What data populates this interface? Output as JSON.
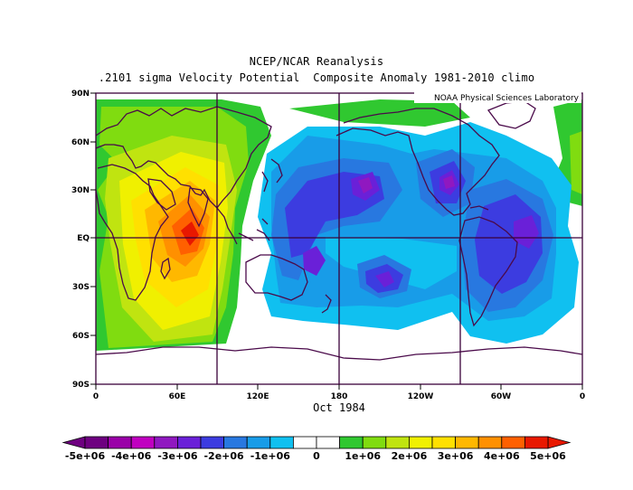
{
  "figure": {
    "title_line1": "NCEP/NCAR Reanalysis",
    "title_line2": ".2101 sigma Velocity Potential  Composite Anomaly 1981-2010 climo",
    "credit": "NOAA Physical Sciences Laboratory",
    "time_label": "Oct 1984"
  },
  "axes": {
    "lat_labels": [
      "90N",
      "60N",
      "30N",
      "EQ",
      "30S",
      "60S",
      "90S"
    ],
    "lon_labels": [
      "0",
      "60E",
      "120E",
      "180",
      "120W",
      "60W",
      "0"
    ]
  },
  "colorbar": {
    "labels": [
      "-5e+06",
      "-4e+06",
      "-3e+06",
      "-2e+06",
      "-1e+06",
      "0",
      "1e+06",
      "2e+06",
      "3e+06",
      "4e+06",
      "5e+06"
    ],
    "colors": [
      "#6e0080",
      "#9a00a8",
      "#c000c0",
      "#9018c0",
      "#6a20d8",
      "#3c3ce0",
      "#2878e0",
      "#189ce8",
      "#10c0f0",
      "#ffffff",
      "#ffffff",
      "#30c830",
      "#80dc10",
      "#c0e410",
      "#f0f000",
      "#ffe000",
      "#ffb800",
      "#ff9000",
      "#ff6000",
      "#e81800"
    ]
  },
  "colors": {
    "coast": "#4a0a4a",
    "frame": "#3a003a"
  }
}
